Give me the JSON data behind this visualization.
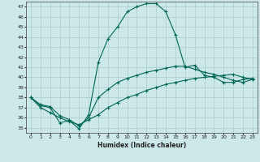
{
  "background_color": "#cce8e8",
  "grid_color": "#aacccc",
  "line_color": "#006655",
  "xlabel": "Humidex (Indice chaleur)",
  "xlim": [
    -0.5,
    23.5
  ],
  "ylim": [
    34.5,
    47.5
  ],
  "xticks": [
    0,
    1,
    2,
    3,
    4,
    5,
    6,
    7,
    8,
    9,
    10,
    11,
    12,
    13,
    14,
    15,
    16,
    17,
    18,
    19,
    20,
    21,
    22,
    23
  ],
  "yticks": [
    35,
    36,
    37,
    38,
    39,
    40,
    41,
    42,
    43,
    44,
    45,
    46,
    47
  ],
  "curve1_x": [
    0,
    1,
    2,
    3,
    4,
    5,
    6,
    7,
    8,
    9,
    10,
    11,
    12,
    13,
    14,
    15,
    16,
    17,
    18,
    19,
    20,
    21,
    22,
    23
  ],
  "curve1_y": [
    38.0,
    37.2,
    37.0,
    35.5,
    35.7,
    34.9,
    36.3,
    41.5,
    43.8,
    45.0,
    46.5,
    47.0,
    47.3,
    47.3,
    46.5,
    44.2,
    41.0,
    41.2,
    40.2,
    40.0,
    39.5,
    39.5,
    39.8,
    39.9
  ],
  "curve2_x": [
    0,
    1,
    2,
    3,
    4,
    5,
    6,
    7,
    8,
    9,
    10,
    11,
    12,
    13,
    14,
    15,
    16,
    17,
    18,
    19,
    20,
    21,
    22,
    23
  ],
  "curve2_y": [
    38.0,
    37.3,
    37.1,
    36.2,
    35.8,
    35.2,
    36.0,
    38.0,
    38.8,
    39.5,
    39.9,
    40.2,
    40.5,
    40.7,
    40.9,
    41.1,
    41.1,
    40.8,
    40.5,
    40.3,
    40.0,
    39.7,
    39.5,
    39.8
  ],
  "curve3_x": [
    0,
    1,
    2,
    3,
    4,
    5,
    6,
    7,
    8,
    9,
    10,
    11,
    12,
    13,
    14,
    15,
    16,
    17,
    18,
    19,
    20,
    21,
    22,
    23
  ],
  "curve3_y": [
    38.0,
    37.0,
    36.5,
    36.0,
    35.6,
    35.3,
    35.8,
    36.3,
    37.0,
    37.5,
    38.0,
    38.3,
    38.7,
    39.0,
    39.3,
    39.5,
    39.7,
    39.9,
    40.0,
    40.1,
    40.2,
    40.3,
    40.0,
    39.8
  ]
}
